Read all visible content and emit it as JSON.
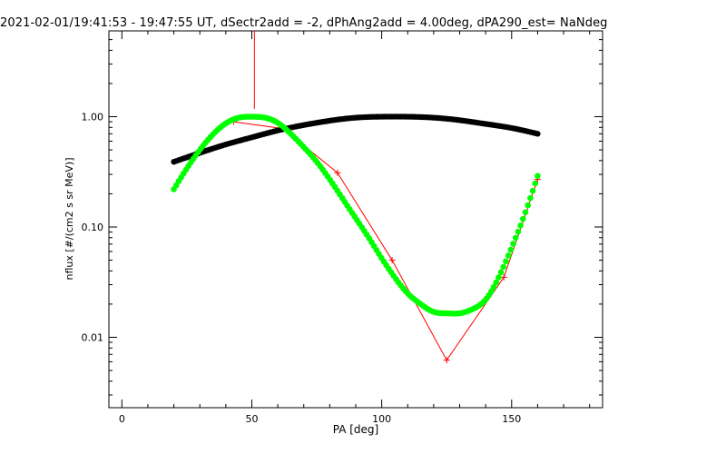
{
  "chart_data": {
    "type": "scatter",
    "title": "2021-02-01/19:41:53 - 19:47:55 UT, dSectr2add = -2, dPhAng2add = 4.00deg, dPA290_est=   NaNdeg",
    "xlabel": "PA [deg]",
    "ylabel": "nflux [#/(cm2 s sr MeV)]",
    "xlim": [
      -5,
      185
    ],
    "ylim": [
      0.0023,
      6.0
    ],
    "yscale": "log",
    "x_ticks": [
      0,
      50,
      100,
      150
    ],
    "x_tick_labels": [
      "0",
      "50",
      "100",
      "150"
    ],
    "y_ticks": [
      0.01,
      0.1,
      1.0
    ],
    "y_tick_labels": [
      "0.01",
      "0.10",
      "1.00"
    ],
    "grid": false,
    "colors": {
      "black_series": "#000000",
      "green_series": "#00ff00",
      "red_series": "#ff0000"
    },
    "series": [
      {
        "type": "line_markers",
        "marker": "+",
        "color": "#ff0000",
        "x": [
          43,
          62,
          83,
          104,
          125,
          147,
          160
        ],
        "y": [
          0.9,
          0.78,
          0.31,
          0.05,
          0.0062,
          0.035,
          0.27
        ]
      },
      {
        "type": "dots",
        "color": "#000000",
        "x": [
          20,
          30,
          40,
          50,
          60,
          70,
          80,
          90,
          100,
          110,
          120,
          130,
          140,
          150,
          160
        ],
        "y": [
          0.39,
          0.47,
          0.56,
          0.65,
          0.75,
          0.84,
          0.92,
          0.98,
          1.0,
          1.0,
          0.98,
          0.93,
          0.86,
          0.79,
          0.7
        ]
      },
      {
        "type": "dots",
        "color": "#00ff00",
        "x": [
          20,
          25,
          30,
          35,
          40,
          45,
          50,
          55,
          60,
          65,
          70,
          75,
          80,
          85,
          90,
          95,
          100,
          105,
          110,
          115,
          120,
          125,
          130,
          135,
          140,
          145,
          150,
          155,
          160
        ],
        "y": [
          0.22,
          0.34,
          0.5,
          0.69,
          0.87,
          0.98,
          1.0,
          0.98,
          0.88,
          0.7,
          0.53,
          0.39,
          0.27,
          0.18,
          0.12,
          0.08,
          0.052,
          0.035,
          0.025,
          0.02,
          0.017,
          0.0165,
          0.0165,
          0.018,
          0.022,
          0.035,
          0.065,
          0.13,
          0.29
        ]
      },
      {
        "type": "spike",
        "color": "#ff0000",
        "x": [
          51,
          51
        ],
        "y": [
          1.18,
          6.0
        ]
      }
    ]
  }
}
